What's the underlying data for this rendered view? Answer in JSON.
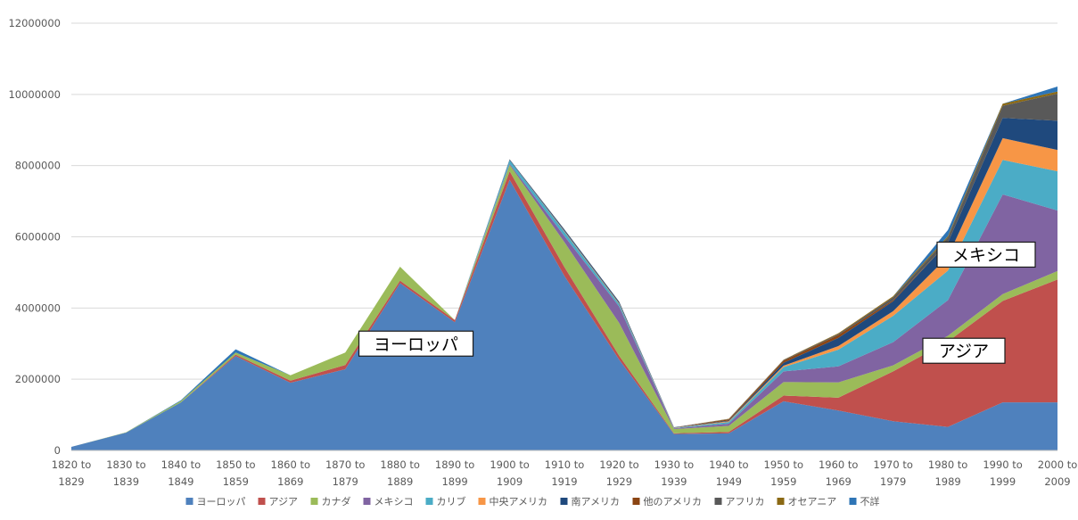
{
  "chart_data": {
    "type": "area",
    "stacked": true,
    "title": "",
    "xlabel": "",
    "ylabel": "",
    "ylim": [
      0,
      12000000
    ],
    "y_ticks": [
      0,
      2000000,
      4000000,
      6000000,
      8000000,
      10000000,
      12000000
    ],
    "y_tick_labels": [
      "0",
      "2000000",
      "4000000",
      "6000000",
      "8000000",
      "10000000",
      "12000000"
    ],
    "grid": "horizontal",
    "legend_position": "bottom",
    "categories": [
      [
        "1820 to",
        "1829"
      ],
      [
        "1830 to",
        "1839"
      ],
      [
        "1840 to",
        "1849"
      ],
      [
        "1850 to",
        "1859"
      ],
      [
        "1860 to",
        "1869"
      ],
      [
        "1870 to",
        "1879"
      ],
      [
        "1880 to",
        "1889"
      ],
      [
        "1890 to",
        "1899"
      ],
      [
        "1900 to",
        "1909"
      ],
      [
        "1910 to",
        "1919"
      ],
      [
        "1920 to",
        "1929"
      ],
      [
        "1930 to",
        "1939"
      ],
      [
        "1940 to",
        "1949"
      ],
      [
        "1950 to",
        "1959"
      ],
      [
        "1960 to",
        "1969"
      ],
      [
        "1970 to",
        "1979"
      ],
      [
        "1980 to",
        "1989"
      ],
      [
        "1990 to",
        "1999"
      ],
      [
        "2000 to",
        "2009"
      ]
    ],
    "series": [
      {
        "name": "ヨーロッパ",
        "color": "#4f81bd",
        "values": [
          100000,
          500000,
          1350000,
          2650000,
          1900000,
          2280000,
          4700000,
          3600000,
          7600000,
          4900000,
          2550000,
          460000,
          480000,
          1380000,
          1120000,
          820000,
          660000,
          1350000,
          1350000
        ]
      },
      {
        "name": "アジア",
        "color": "#c0504d",
        "values": [
          0,
          0,
          0,
          40000,
          60000,
          120000,
          70000,
          60000,
          240000,
          250000,
          110000,
          20000,
          40000,
          160000,
          360000,
          1400000,
          2400000,
          2850000,
          3450000
        ]
      },
      {
        "name": "カナダ",
        "color": "#9bbb59",
        "values": [
          0,
          10000,
          40000,
          60000,
          150000,
          350000,
          390000,
          0,
          180000,
          700000,
          920000,
          120000,
          170000,
          380000,
          430000,
          170000,
          160000,
          190000,
          240000
        ]
      },
      {
        "name": "メキシコ",
        "color": "#8064a2",
        "values": [
          0,
          0,
          0,
          0,
          0,
          0,
          0,
          0,
          30000,
          170000,
          460000,
          20000,
          60000,
          300000,
          450000,
          650000,
          1000000,
          2800000,
          1700000
        ]
      },
      {
        "name": "カリブ",
        "color": "#4bacc6",
        "values": [
          0,
          0,
          0,
          0,
          0,
          0,
          0,
          0,
          100000,
          120000,
          70000,
          10000,
          50000,
          120000,
          470000,
          740000,
          830000,
          970000,
          1100000
        ]
      },
      {
        "name": "中央アメリカ",
        "color": "#f79646",
        "values": [
          0,
          0,
          0,
          0,
          0,
          0,
          0,
          0,
          0,
          20000,
          20000,
          10000,
          20000,
          40000,
          100000,
          130000,
          400000,
          610000,
          600000
        ]
      },
      {
        "name": "南アメリカ",
        "color": "#1f497d",
        "values": [
          0,
          0,
          0,
          0,
          0,
          0,
          0,
          0,
          20000,
          40000,
          40000,
          10000,
          20000,
          80000,
          230000,
          280000,
          390000,
          570000,
          820000
        ]
      },
      {
        "name": "他のアメリカ",
        "color": "#8b4513",
        "values": [
          0,
          0,
          0,
          0,
          0,
          0,
          0,
          0,
          0,
          0,
          0,
          0,
          30000,
          60000,
          80000,
          30000,
          0,
          0,
          0
        ]
      },
      {
        "name": "アフリカ",
        "color": "#595959",
        "values": [
          0,
          0,
          0,
          0,
          0,
          0,
          0,
          0,
          10000,
          10000,
          10000,
          0,
          10000,
          20000,
          30000,
          80000,
          140000,
          340000,
          760000
        ]
      },
      {
        "name": "オセアニア",
        "color": "#8b6914",
        "values": [
          0,
          0,
          0,
          0,
          0,
          0,
          0,
          0,
          0,
          0,
          0,
          0,
          10000,
          10000,
          20000,
          30000,
          40000,
          60000,
          60000
        ]
      },
      {
        "name": "不詳",
        "color": "#2e75b6",
        "values": [
          0,
          0,
          20000,
          90000,
          0,
          0,
          0,
          0,
          0,
          0,
          0,
          0,
          0,
          0,
          0,
          0,
          170000,
          0,
          140000
        ]
      }
    ],
    "annotations": [
      {
        "text": "ヨーロッパ",
        "category_index": 8,
        "y": 3000000
      },
      {
        "text": "メキシコ",
        "category_index": 18,
        "y": 5500000
      },
      {
        "text": "アジア",
        "category_index": 18,
        "y": 2800000
      }
    ]
  }
}
